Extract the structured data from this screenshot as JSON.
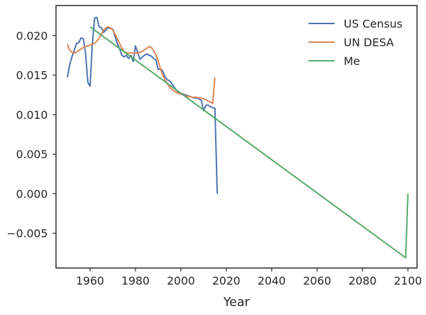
{
  "chart_data": {
    "type": "line",
    "xlabel": "Year",
    "ylabel": "",
    "xlim": [
      1945,
      2104
    ],
    "ylim": [
      -0.0094,
      0.0238
    ],
    "xticks": [
      1960,
      1980,
      2000,
      2020,
      2040,
      2060,
      2080,
      2100
    ],
    "yticks": [
      -0.005,
      0.0,
      0.005,
      0.01,
      0.015,
      0.02
    ],
    "xtick_labels": [
      "1960",
      "1980",
      "2000",
      "2020",
      "2040",
      "2060",
      "2080",
      "2100"
    ],
    "ytick_labels": [
      "−0.005",
      "0.000",
      "0.005",
      "0.010",
      "0.015",
      "0.020"
    ],
    "grid": false,
    "legend_position": "top-right",
    "series": [
      {
        "name": "US Census",
        "color": "#4c72b0",
        "x": [
          1950,
          1951,
          1952,
          1953,
          1954,
          1955,
          1956,
          1957,
          1958,
          1959,
          1960,
          1961,
          1962,
          1963,
          1964,
          1965,
          1966,
          1967,
          1968,
          1969,
          1970,
          1971,
          1972,
          1973,
          1974,
          1975,
          1976,
          1977,
          1978,
          1979,
          1980,
          1981,
          1982,
          1983,
          1984,
          1985,
          1986,
          1987,
          1988,
          1989,
          1990,
          1991,
          1992,
          1993,
          1994,
          1995,
          1996,
          1997,
          1998,
          1999,
          2000,
          2001,
          2002,
          2003,
          2004,
          2005,
          2006,
          2007,
          2008,
          2009,
          2010,
          2011,
          2012,
          2013,
          2014,
          2015,
          2016
        ],
        "y": [
          0.0147,
          0.0163,
          0.0173,
          0.0181,
          0.019,
          0.0191,
          0.0197,
          0.0196,
          0.0178,
          0.0141,
          0.0136,
          0.019,
          0.0222,
          0.0223,
          0.0211,
          0.021,
          0.0204,
          0.0207,
          0.021,
          0.0209,
          0.0208,
          0.0199,
          0.019,
          0.0183,
          0.0175,
          0.0173,
          0.0175,
          0.0171,
          0.0175,
          0.0167,
          0.0187,
          0.0178,
          0.017,
          0.0173,
          0.0175,
          0.0177,
          0.0175,
          0.0174,
          0.0171,
          0.0169,
          0.0157,
          0.0158,
          0.0155,
          0.0148,
          0.0144,
          0.0143,
          0.0139,
          0.0135,
          0.0131,
          0.0128,
          0.0127,
          0.0126,
          0.0125,
          0.0124,
          0.0123,
          0.0122,
          0.0121,
          0.0121,
          0.012,
          0.0118,
          0.0105,
          0.0112,
          0.0112,
          0.011,
          0.0109,
          0.0108,
          0.0
        ]
      },
      {
        "name": "UN DESA",
        "color": "#dd8452",
        "x": [
          1950,
          1951,
          1952,
          1953,
          1954,
          1955,
          1956,
          1957,
          1958,
          1959,
          1960,
          1961,
          1962,
          1963,
          1964,
          1965,
          1966,
          1967,
          1968,
          1969,
          1970,
          1971,
          1972,
          1973,
          1974,
          1975,
          1976,
          1977,
          1978,
          1979,
          1980,
          1981,
          1982,
          1983,
          1984,
          1985,
          1986,
          1987,
          1988,
          1989,
          1990,
          1991,
          1992,
          1993,
          1994,
          1995,
          1996,
          1997,
          1998,
          1999,
          2000,
          2001,
          2002,
          2003,
          2004,
          2005,
          2006,
          2007,
          2008,
          2009,
          2010,
          2011,
          2012,
          2013,
          2014,
          2015
        ],
        "y": [
          0.0189,
          0.0182,
          0.0179,
          0.0178,
          0.0179,
          0.0181,
          0.0183,
          0.0185,
          0.0186,
          0.0187,
          0.0188,
          0.0189,
          0.019,
          0.0193,
          0.0197,
          0.0202,
          0.0207,
          0.021,
          0.0211,
          0.021,
          0.0207,
          0.0202,
          0.0196,
          0.019,
          0.0184,
          0.018,
          0.0178,
          0.0178,
          0.0178,
          0.0178,
          0.0178,
          0.0178,
          0.0179,
          0.018,
          0.0182,
          0.0184,
          0.0186,
          0.0185,
          0.0181,
          0.0176,
          0.0168,
          0.0158,
          0.015,
          0.0144,
          0.0139,
          0.0135,
          0.0132,
          0.013,
          0.0128,
          0.0127,
          0.0126,
          0.0125,
          0.0124,
          0.0123,
          0.0123,
          0.0122,
          0.0122,
          0.0122,
          0.0121,
          0.0121,
          0.012,
          0.0119,
          0.0117,
          0.0116,
          0.0114,
          0.0147
        ]
      },
      {
        "name": "Me",
        "color": "#55a868",
        "x": [
          1960,
          2099,
          2100
        ],
        "y": [
          0.0211,
          -0.0081,
          0.0
        ]
      }
    ]
  }
}
